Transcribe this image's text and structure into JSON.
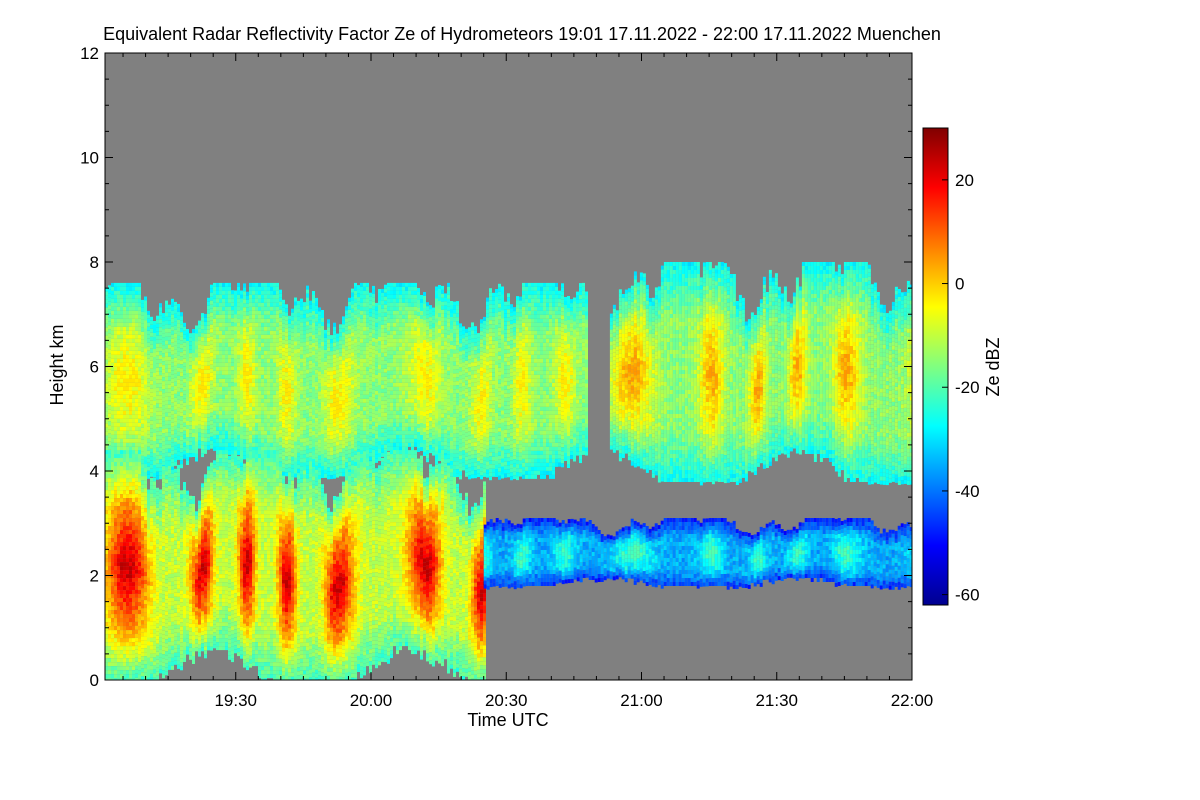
{
  "chart_data": {
    "type": "heatmap",
    "title": "Equivalent Radar Reflectivity Factor Ze of Hydrometeors   19:01 17.11.2022 - 22:00 17.11.2022 Muenchen",
    "xlabel": "Time UTC",
    "ylabel": "Height km",
    "x_range": [
      "19:01",
      "22:00"
    ],
    "x_ticks": [
      "19:30",
      "20:00",
      "20:30",
      "21:00",
      "21:30",
      "22:00"
    ],
    "y_range": [
      0,
      12
    ],
    "y_ticks": [
      "0",
      "2",
      "4",
      "6",
      "8",
      "10",
      "12"
    ],
    "background_color": "#808080",
    "colorbar": {
      "label": "Ze dBZ",
      "range": [
        -62,
        30
      ],
      "ticks": [
        "-60",
        "-40",
        "-20",
        "0",
        "20"
      ],
      "colormap": "jet",
      "stops": [
        "#00008f",
        "#0000ff",
        "#0080ff",
        "#00ffff",
        "#80ff80",
        "#ffff00",
        "#ff8000",
        "#ff0000",
        "#800000"
      ]
    },
    "regions": [
      {
        "name": "upper cloud layer A",
        "t_start": "19:01",
        "t_end": "20:48",
        "base_km": 3.9,
        "top_km": 7.6,
        "typical_dbz": -15,
        "max_dbz": -2
      },
      {
        "name": "upper cloud layer B",
        "t_start": "20:53",
        "t_end": "22:00",
        "base_km": 3.8,
        "top_km": 8.0,
        "typical_dbz": -15,
        "max_dbz": 5
      },
      {
        "name": "convective cells",
        "t_start": "19:01",
        "t_end": "20:25",
        "base_km": 0.0,
        "top_km": 4.4,
        "typical_dbz": -10,
        "max_dbz": 25
      },
      {
        "name": "low thin layer",
        "t_start": "20:25",
        "t_end": "22:00",
        "base_km": 1.8,
        "top_km": 3.1,
        "typical_dbz": -35,
        "max_dbz": -20
      }
    ]
  }
}
